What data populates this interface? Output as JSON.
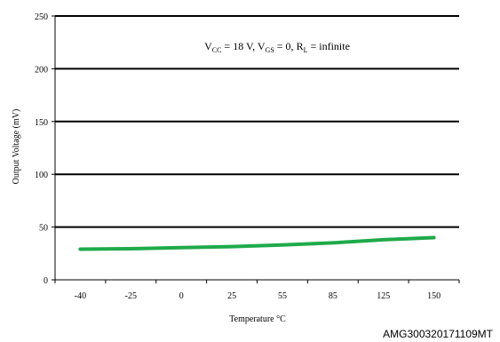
{
  "chart_data": {
    "type": "line",
    "x": [
      "-40",
      "-25",
      "0",
      "25",
      "55",
      "85",
      "125",
      "150"
    ],
    "series": [
      {
        "name": "",
        "color": "#1faa4a",
        "values": [
          29,
          29.5,
          30.5,
          31.5,
          33,
          35,
          38,
          40
        ]
      }
    ],
    "ylim": [
      0,
      250
    ],
    "yticks": [
      0,
      50,
      100,
      150,
      200,
      250
    ],
    "xlabel": "Temperature °C",
    "ylabel": "Output Voltage (mV)",
    "grid": "horizontal",
    "annotation": {
      "v1": "V",
      "v1_sub": "CC",
      "v1_rest": " = 18 V, ",
      "v2": "V",
      "v2_sub": "GS",
      "v2_rest": " = 0, ",
      "v3": "R",
      "v3_sub": "L",
      "v3_rest": " = infinite"
    },
    "footer_code": "AMG300320171109MT"
  }
}
